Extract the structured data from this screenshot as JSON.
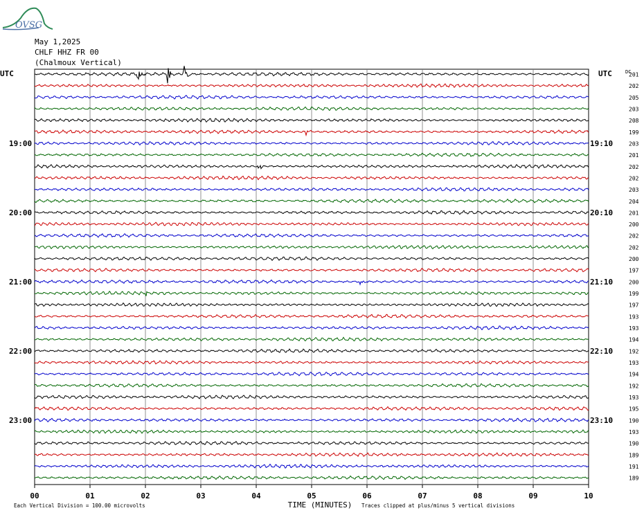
{
  "logo": {
    "text": "OVSG"
  },
  "header": {
    "date": "May 1,2025",
    "station": "CHLF HHZ FR 00",
    "location": "(Chalmoux Vertical)"
  },
  "chart_data": {
    "type": "line",
    "title": "",
    "left_axis_label": "UTC",
    "right_axis_label": "UTC",
    "right_column_header": "DC",
    "xlabel": "TIME (MINUTES)",
    "xlim": [
      0,
      10
    ],
    "x_tick_labels": [
      "00",
      "01",
      "02",
      "03",
      "04",
      "05",
      "06",
      "07",
      "08",
      "09",
      "10"
    ],
    "left_time_labels": [
      {
        "row": 6,
        "label": "19:00"
      },
      {
        "row": 12,
        "label": "20:00"
      },
      {
        "row": 18,
        "label": "21:00"
      },
      {
        "row": 24,
        "label": "22:00"
      },
      {
        "row": 30,
        "label": "23:00"
      }
    ],
    "right_time_labels": [
      {
        "row": 6,
        "label": "19:10"
      },
      {
        "row": 12,
        "label": "20:10"
      },
      {
        "row": 18,
        "label": "21:10"
      },
      {
        "row": 24,
        "label": "22:10"
      },
      {
        "row": 30,
        "label": "23:10"
      }
    ],
    "trace_colors": [
      "#000000",
      "#cc0000",
      "#0000cc",
      "#006600"
    ],
    "dc_offsets": [
      "201",
      "202",
      "205",
      "203",
      "208",
      "199",
      "203",
      "201",
      "202",
      "202",
      "203",
      "204",
      "201",
      "200",
      "202",
      "202",
      "200",
      "197",
      "200",
      "199",
      "197",
      "193",
      "193",
      "194",
      "192",
      "193",
      "194",
      "192",
      "193",
      "195",
      "190",
      "193",
      "190",
      "189",
      "191",
      "189"
    ],
    "events": [
      {
        "row": 0,
        "minute": 1.87,
        "amplitude": 10
      },
      {
        "row": 0,
        "minute": 2.4,
        "amplitude": 14
      },
      {
        "row": 0,
        "minute": 2.7,
        "amplitude": 13
      },
      {
        "row": 5,
        "minute": 4.9,
        "amplitude": 5
      },
      {
        "row": 8,
        "minute": 4.05,
        "amplitude": 6
      },
      {
        "row": 18,
        "minute": 5.88,
        "amplitude": 5
      },
      {
        "row": 19,
        "minute": 2.0,
        "amplitude": 5
      }
    ],
    "footer_left": "Each Vertical Division =  100.00 microvolts",
    "footer_right": "Traces clipped at plus/minus 5 vertical divisions"
  }
}
